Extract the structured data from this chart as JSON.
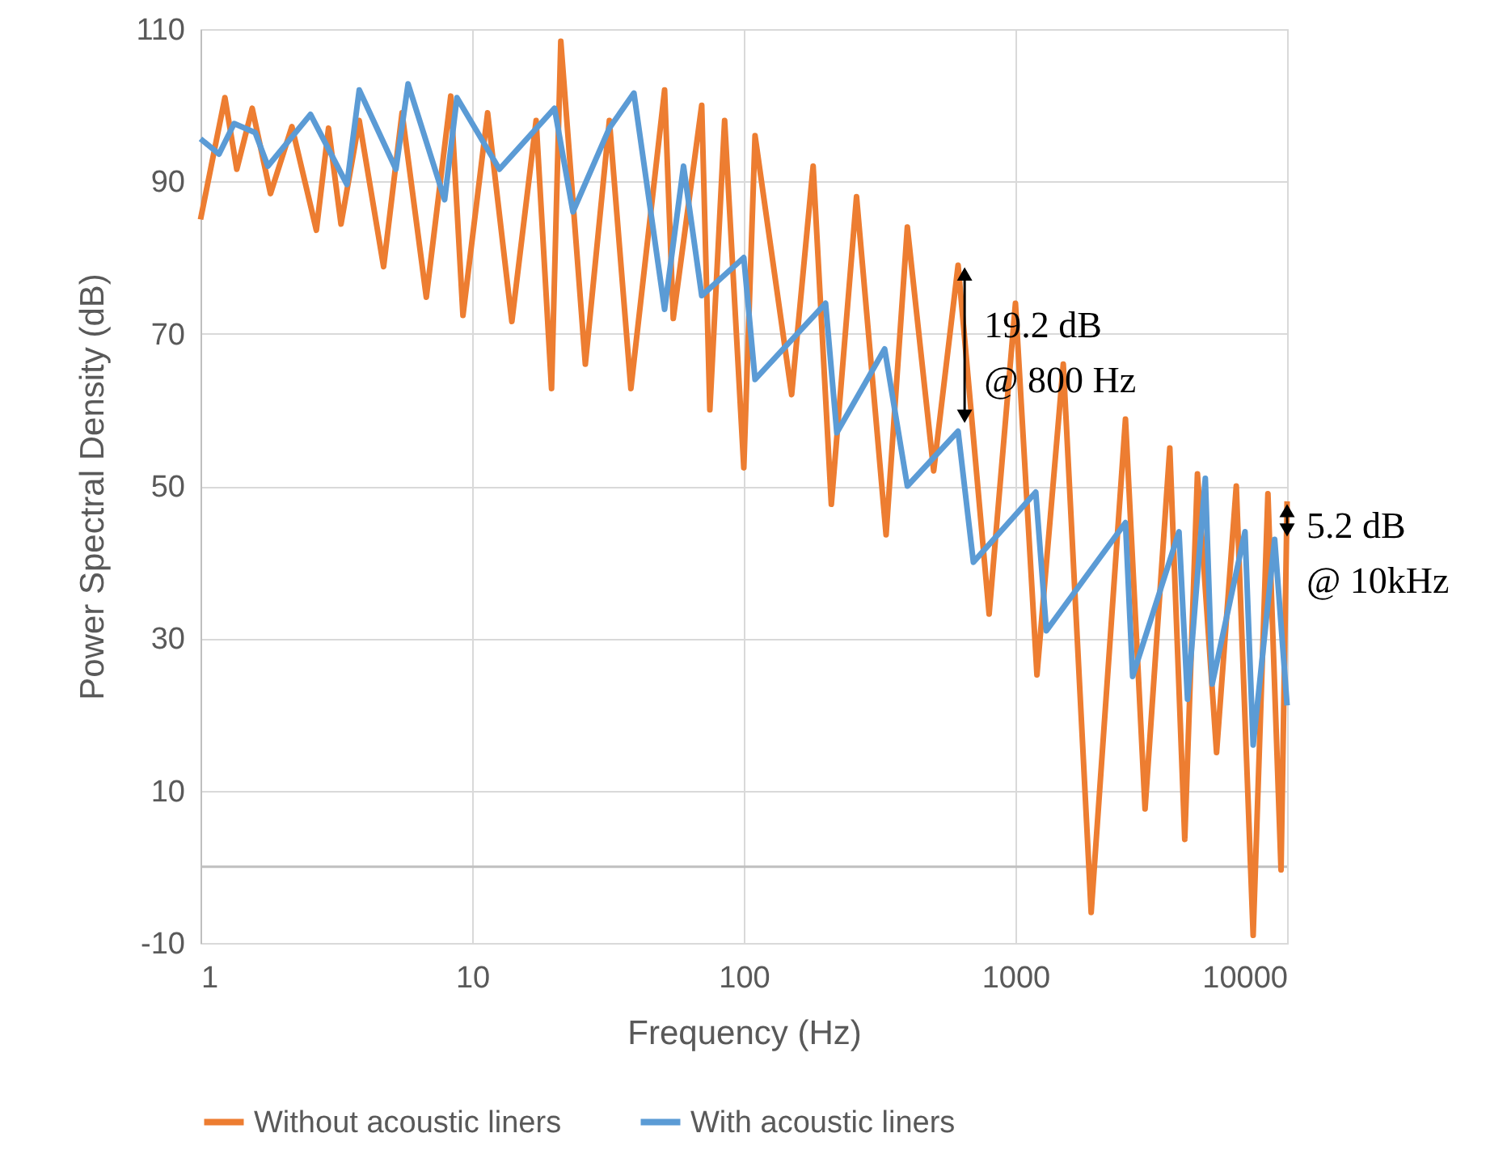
{
  "chart_data": {
    "type": "line",
    "xlabel": "Frequency (Hz)",
    "ylabel": "Power Spectral Density (dB)",
    "log": "x",
    "xlim": [
      1,
      10000
    ],
    "xticks": [
      1,
      10,
      100,
      1000,
      10000
    ],
    "ylim": [
      -10,
      110
    ],
    "yticks": [
      -10,
      10,
      30,
      50,
      70,
      90,
      110
    ],
    "grid": true,
    "legend": "bottom",
    "marker": "none",
    "line_style": "solid",
    "ref_lines": [
      {
        "axis": "y",
        "value": 0,
        "color": "#bfbfbf"
      }
    ],
    "annotations": [
      {
        "text": "19.2 dB\n@ 800 Hz",
        "x": 650,
        "y": 68.5
      },
      {
        "text": "5.2 dB\n@ 10kHz",
        "x": 10000,
        "y": 45.5
      }
    ],
    "series": [
      {
        "name": "Without acoustic liners",
        "color": "#ed7d31",
        "x": [
          1.0,
          1.23,
          1.36,
          1.55,
          1.81,
          2.17,
          2.67,
          2.96,
          3.29,
          3.84,
          4.72,
          5.52,
          6.78,
          8.34,
          9.25,
          11.4,
          14.0,
          17.2,
          19.6,
          21.2,
          26.1,
          32.0,
          38.4,
          51.1,
          55,
          70,
          75,
          85,
          100,
          110,
          150,
          180,
          210,
          260,
          334,
          400,
          500,
          615,
          800,
          1000,
          1200,
          1500,
          1900,
          2541,
          3000,
          3700,
          4200,
          4677,
          5500,
          6500,
          7500,
          8500,
          9500,
          10000
        ],
        "values": [
          85,
          101,
          91.6,
          99.6,
          88.4,
          97.2,
          83.6,
          97,
          84.4,
          98,
          78.8,
          99,
          74.8,
          101.2,
          72.4,
          99,
          71.6,
          98,
          62.8,
          108.4,
          66,
          98,
          62.8,
          102,
          72,
          100,
          60,
          98,
          52.4,
          96,
          62,
          92,
          47.6,
          88,
          43.6,
          84,
          52,
          79,
          33.2,
          74,
          25.2,
          66,
          -6,
          58.8,
          7.6,
          55,
          3.6,
          51.6,
          15,
          50,
          -9,
          49,
          -0.4,
          48
        ]
      },
      {
        "name": "With acoustic liners",
        "color": "#5b9bd5",
        "x": [
          1.0,
          1.17,
          1.33,
          1.59,
          1.77,
          2.54,
          3.46,
          3.84,
          5.24,
          5.81,
          7.92,
          8.79,
          12.6,
          20.1,
          23.5,
          32,
          39.4,
          51.1,
          60,
          70,
          100,
          110,
          200,
          220,
          330,
          400,
          615,
          700,
          1188,
          1300,
          2541,
          2700,
          4000,
          4300,
          5000,
          5300,
          7000,
          7500,
          9000,
          10000
        ],
        "values": [
          95.6,
          93.6,
          97.6,
          96.4,
          92,
          98.8,
          89.6,
          102,
          91.6,
          102.8,
          87.6,
          101,
          91.6,
          99.6,
          86,
          97,
          101.6,
          73.2,
          92,
          75,
          80,
          64,
          74,
          57,
          68,
          50,
          57.2,
          40,
          49.2,
          31,
          45.2,
          25,
          44,
          22,
          51,
          24,
          44,
          16,
          43,
          21.2
        ]
      }
    ]
  }
}
